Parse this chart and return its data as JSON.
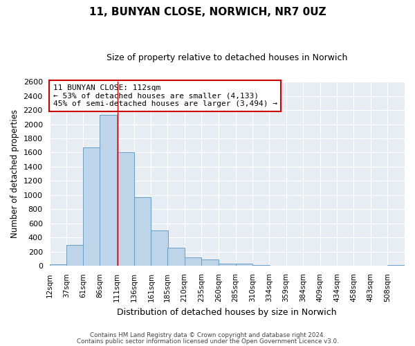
{
  "title": "11, BUNYAN CLOSE, NORWICH, NR7 0UZ",
  "subtitle": "Size of property relative to detached houses in Norwich",
  "xlabel": "Distribution of detached houses by size in Norwich",
  "ylabel": "Number of detached properties",
  "bin_labels": [
    "12sqm",
    "37sqm",
    "61sqm",
    "86sqm",
    "111sqm",
    "136sqm",
    "161sqm",
    "185sqm",
    "210sqm",
    "235sqm",
    "260sqm",
    "285sqm",
    "310sqm",
    "334sqm",
    "359sqm",
    "384sqm",
    "409sqm",
    "434sqm",
    "458sqm",
    "483sqm",
    "508sqm"
  ],
  "bar_heights": [
    20,
    295,
    1670,
    2130,
    1600,
    970,
    505,
    255,
    120,
    95,
    30,
    35,
    15,
    5,
    5,
    5,
    5,
    5,
    5,
    5,
    15
  ],
  "bar_color": "#bdd4e9",
  "bar_edge_color": "#6a9ec7",
  "fig_facecolor": "#ffffff",
  "ax_facecolor": "#e8edf4",
  "grid_color": "#ffffff",
  "vline_x": 112,
  "vline_color": "#cc0000",
  "annotation_title": "11 BUNYAN CLOSE: 112sqm",
  "annotation_line1": "← 53% of detached houses are smaller (4,133)",
  "annotation_line2": "45% of semi-detached houses are larger (3,494) →",
  "annotation_box_facecolor": "#ffffff",
  "annotation_box_edgecolor": "#cc0000",
  "ylim": [
    0,
    2600
  ],
  "yticks": [
    0,
    200,
    400,
    600,
    800,
    1000,
    1200,
    1400,
    1600,
    1800,
    2000,
    2200,
    2400,
    2600
  ],
  "footer1": "Contains HM Land Registry data © Crown copyright and database right 2024.",
  "footer2": "Contains public sector information licensed under the Open Government Licence v3.0.",
  "bin_width": 25
}
